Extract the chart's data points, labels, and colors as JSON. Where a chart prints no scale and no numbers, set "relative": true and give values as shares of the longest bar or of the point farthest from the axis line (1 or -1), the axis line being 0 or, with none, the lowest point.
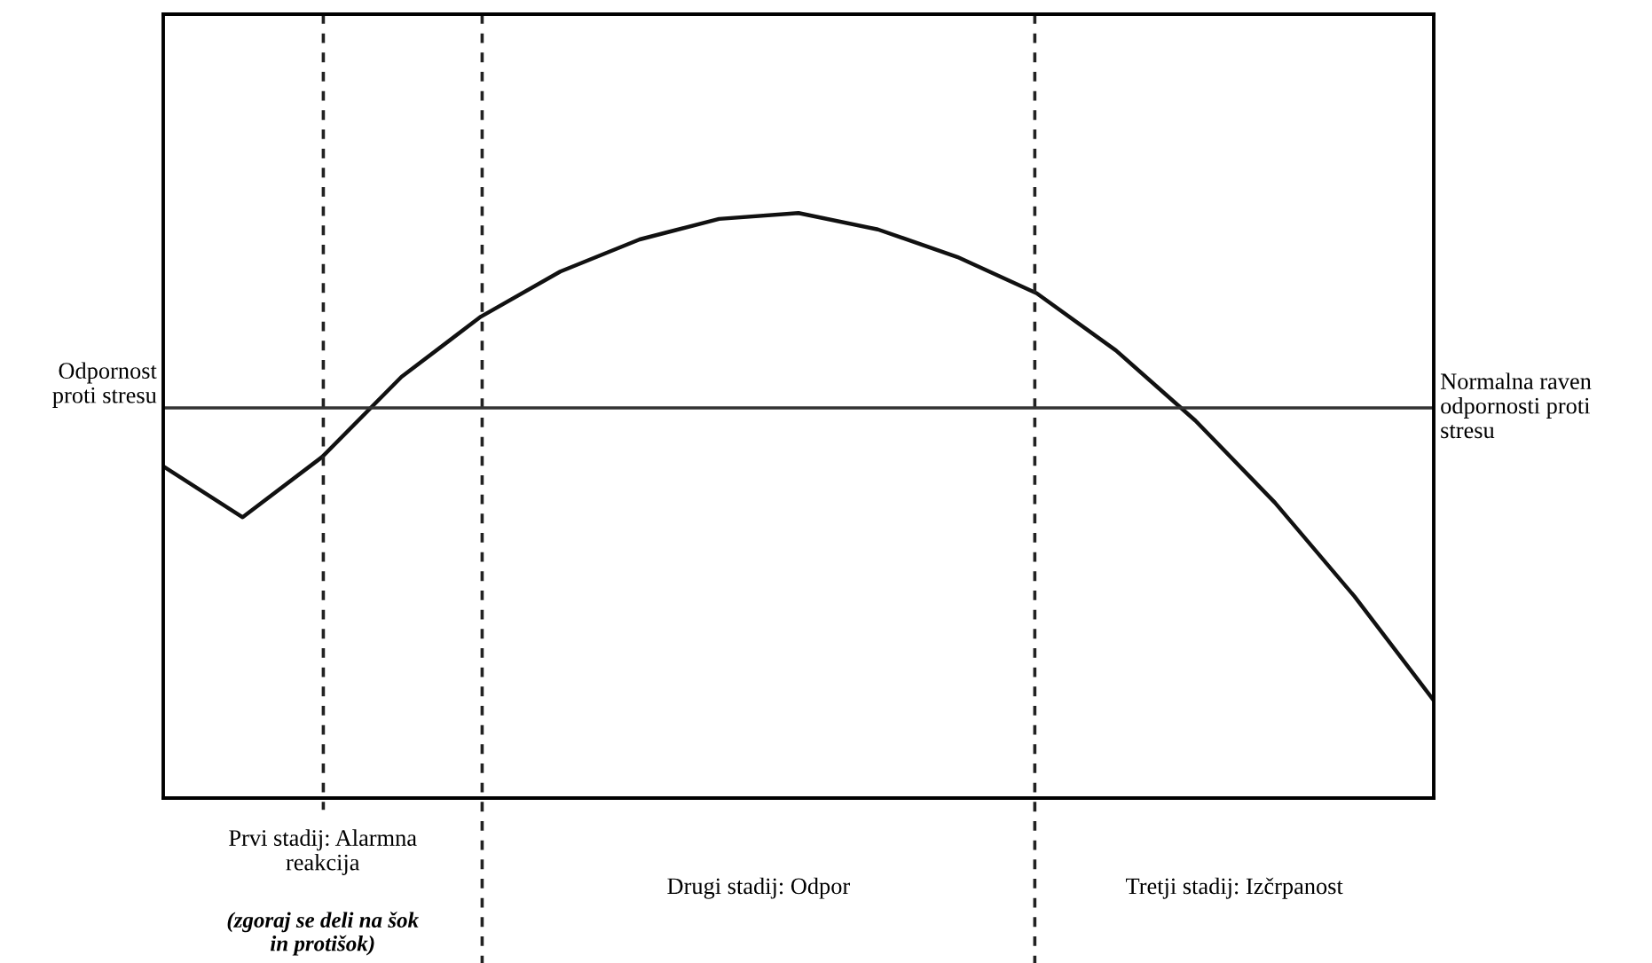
{
  "chart_data": {
    "type": "line",
    "relative": true,
    "ylabel": "Odpornost\nproti stresu",
    "grid": "x",
    "categories": [
      null,
      null,
      null,
      null,
      null,
      null,
      null,
      null,
      null,
      null,
      null,
      null,
      null,
      null,
      null,
      null,
      null
    ],
    "series": [
      {
        "color": "#111111",
        "values": [
          0.567,
          0.48,
          0.583,
          0.72,
          0.823,
          0.9,
          0.955,
          0.99,
          1.0,
          0.972,
          0.925,
          0.863,
          0.765,
          0.645,
          0.505,
          0.345,
          0.167
        ]
      }
    ],
    "ref_lines": [
      {
        "axis": "y",
        "value": 0.667,
        "label": "Normalna raven\nodpornosti proti\nstresu",
        "color": "#333333",
        "line_style": "solid"
      }
    ],
    "annotations": [
      "Prvi stadij: Alarmna\nreakcija",
      "Drugi stadij: Odpor",
      "Tretji stadij: Izčrpanost",
      "(zgoraj se deli na šok\nin protišok)"
    ]
  }
}
